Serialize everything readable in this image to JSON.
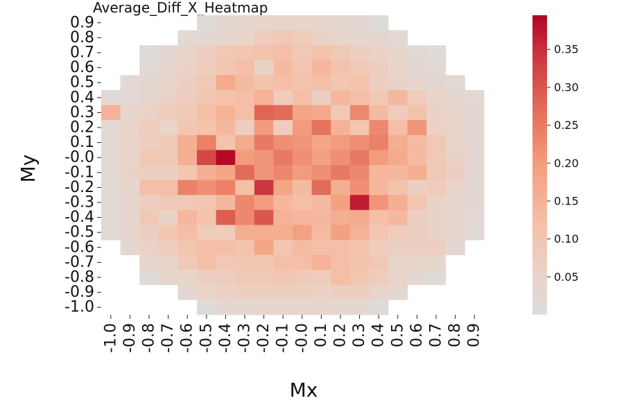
{
  "chart_data": {
    "type": "heatmap",
    "title": "Average_Diff_X_Heatmap",
    "xlabel": "Mx",
    "ylabel": "My",
    "x_ticks": [
      "-1.0",
      "-0.9",
      "-0.8",
      "-0.7",
      "-0.6",
      "-0.5",
      "-0.4",
      "-0.3",
      "-0.2",
      "-0.1",
      "-0.0",
      "0.1",
      "0.2",
      "0.3",
      "0.4",
      "0.5",
      "0.6",
      "0.7",
      "0.8",
      "0.9"
    ],
    "y_ticks": [
      "0.9",
      "0.8",
      "0.7",
      "0.6",
      "0.5",
      "0.4",
      "0.3",
      "0.2",
      "0.1",
      "-0.0",
      "-0.1",
      "-0.2",
      "-0.3",
      "-0.4",
      "-0.5",
      "-0.6",
      "-0.7",
      "-0.8",
      "-0.9",
      "-1.0"
    ],
    "colorbar": {
      "colormap": "coolwarm",
      "range": [
        0.0,
        0.395
      ],
      "ticks": [
        0.05,
        0.1,
        0.15,
        0.2,
        0.25,
        0.3,
        0.35
      ],
      "tick_labels": [
        "0.05",
        "0.10",
        "0.15",
        "0.20",
        "0.25",
        "0.30",
        "0.35"
      ]
    },
    "values": [
      [
        null,
        null,
        null,
        null,
        null,
        0.01,
        0.03,
        0.04,
        0.05,
        0.05,
        0.05,
        0.04,
        0.03,
        0.03,
        0.01,
        null,
        null,
        null,
        null,
        null
      ],
      [
        null,
        null,
        null,
        null,
        0.02,
        0.03,
        0.04,
        0.05,
        0.08,
        0.09,
        0.08,
        0.06,
        0.05,
        0.04,
        0.03,
        0.02,
        null,
        null,
        null,
        null
      ],
      [
        null,
        null,
        0.01,
        0.03,
        0.05,
        0.07,
        0.09,
        0.1,
        0.11,
        0.12,
        0.09,
        0.11,
        0.09,
        0.07,
        0.06,
        0.04,
        0.02,
        0.01,
        null,
        null
      ],
      [
        null,
        null,
        0.02,
        0.04,
        0.06,
        0.08,
        0.1,
        0.12,
        0.06,
        0.13,
        0.1,
        0.14,
        0.11,
        0.09,
        0.07,
        0.05,
        0.03,
        0.02,
        null,
        null
      ],
      [
        null,
        0.02,
        0.03,
        0.05,
        0.07,
        0.09,
        0.17,
        0.13,
        0.11,
        0.12,
        0.11,
        0.12,
        0.1,
        0.11,
        0.07,
        0.06,
        0.04,
        0.03,
        0.02,
        null
      ],
      [
        0.02,
        0.02,
        0.04,
        0.06,
        0.08,
        0.1,
        0.11,
        0.12,
        0.15,
        0.08,
        0.12,
        0.07,
        0.14,
        0.12,
        0.09,
        0.14,
        0.08,
        0.05,
        0.03,
        0.02
      ],
      [
        0.15,
        0.04,
        0.06,
        0.08,
        0.09,
        0.12,
        0.15,
        0.12,
        0.28,
        0.27,
        0.18,
        0.17,
        0.09,
        0.23,
        0.13,
        0.08,
        0.11,
        0.06,
        0.04,
        0.03
      ],
      [
        0.02,
        0.05,
        0.08,
        0.05,
        0.1,
        0.11,
        0.14,
        0.07,
        0.2,
        0.08,
        0.2,
        0.26,
        0.15,
        0.1,
        0.23,
        0.12,
        0.21,
        0.06,
        0.05,
        0.03
      ],
      [
        0.02,
        0.05,
        0.07,
        0.09,
        0.16,
        0.24,
        0.11,
        0.17,
        0.25,
        0.22,
        0.21,
        0.18,
        0.2,
        0.22,
        0.24,
        0.16,
        0.13,
        0.09,
        0.05,
        0.03
      ],
      [
        0.02,
        0.05,
        0.09,
        0.09,
        0.16,
        0.32,
        0.39,
        0.2,
        0.21,
        0.25,
        0.22,
        0.19,
        0.22,
        0.25,
        0.2,
        0.17,
        0.13,
        0.09,
        0.06,
        0.03
      ],
      [
        0.02,
        0.06,
        0.07,
        0.07,
        0.1,
        0.16,
        0.18,
        0.27,
        0.21,
        0.23,
        0.2,
        0.22,
        0.25,
        0.23,
        0.14,
        0.14,
        0.16,
        0.09,
        0.07,
        0.03
      ],
      [
        0.02,
        0.04,
        0.12,
        0.12,
        0.24,
        0.22,
        0.24,
        0.12,
        0.34,
        0.18,
        0.13,
        0.27,
        0.16,
        0.22,
        0.14,
        0.11,
        0.07,
        0.08,
        0.05,
        0.03
      ],
      [
        0.02,
        0.04,
        0.07,
        0.09,
        0.09,
        0.1,
        0.14,
        0.23,
        0.2,
        0.14,
        0.12,
        0.13,
        0.19,
        0.37,
        0.21,
        0.16,
        0.1,
        0.06,
        0.04,
        0.03
      ],
      [
        0.02,
        0.04,
        0.09,
        0.06,
        0.14,
        0.11,
        0.29,
        0.23,
        0.3,
        0.15,
        0.14,
        0.14,
        0.16,
        0.17,
        0.12,
        0.14,
        0.07,
        0.06,
        0.04,
        0.02
      ],
      [
        0.02,
        0.04,
        0.07,
        0.1,
        0.12,
        0.08,
        0.08,
        0.16,
        0.16,
        0.16,
        0.19,
        0.13,
        0.19,
        0.15,
        0.1,
        0.08,
        0.07,
        0.06,
        0.04,
        0.02
      ],
      [
        null,
        0.03,
        0.06,
        0.08,
        0.1,
        0.12,
        0.12,
        0.11,
        0.18,
        0.1,
        0.13,
        0.12,
        0.12,
        0.11,
        0.08,
        0.07,
        0.07,
        0.07,
        0.03,
        null
      ],
      [
        null,
        null,
        0.04,
        0.05,
        0.09,
        0.12,
        0.09,
        0.1,
        0.1,
        0.12,
        0.12,
        0.15,
        0.12,
        0.11,
        0.09,
        0.05,
        0.05,
        0.04,
        null,
        null
      ],
      [
        null,
        null,
        0.01,
        0.04,
        0.05,
        0.07,
        0.08,
        0.09,
        0.09,
        0.1,
        0.09,
        0.08,
        0.12,
        0.1,
        0.08,
        0.05,
        0.03,
        0.01,
        null,
        null
      ],
      [
        null,
        null,
        null,
        null,
        0.03,
        0.05,
        0.06,
        0.07,
        0.07,
        0.07,
        0.07,
        0.06,
        0.07,
        0.07,
        0.05,
        0.03,
        null,
        null,
        null,
        null
      ],
      [
        null,
        null,
        null,
        null,
        null,
        0.01,
        0.03,
        0.03,
        0.04,
        0.04,
        0.04,
        0.04,
        0.03,
        0.03,
        0.01,
        null,
        null,
        null,
        null,
        null
      ]
    ]
  }
}
